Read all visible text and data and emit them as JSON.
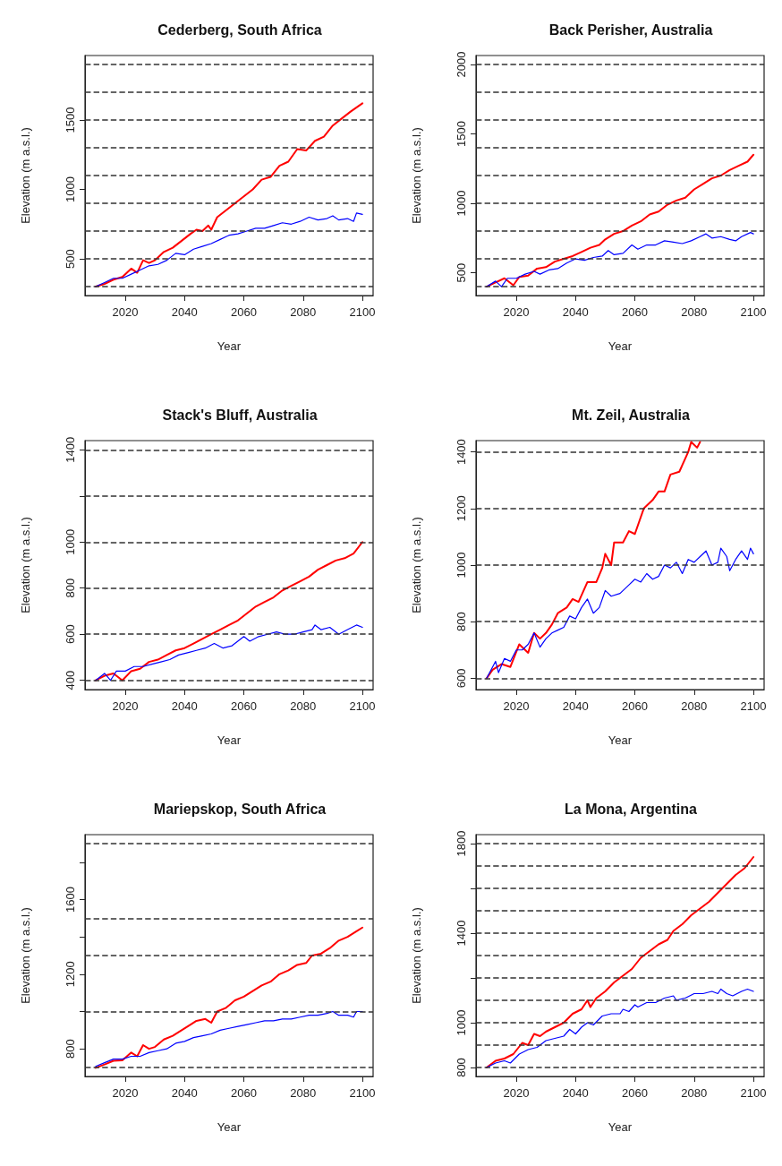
{
  "chart_data": [
    {
      "type": "line",
      "title": "Cederberg, South Africa",
      "xlabel": "Year",
      "ylabel": "Elevation (m a.s.l.)",
      "xlim": [
        2006.4,
        2103.6
      ],
      "xticks": [
        2020,
        2040,
        2060,
        2080,
        2100
      ],
      "ylim": [
        236,
        1964
      ],
      "yticks": [
        500,
        1000,
        1500
      ],
      "grid": false,
      "ref_lines": [
        {
          "axis": "y",
          "value": 300,
          "color": "#333333",
          "line_style": "dashed"
        },
        {
          "axis": "y",
          "value": 500,
          "color": "#333333",
          "line_style": "dashed"
        },
        {
          "axis": "y",
          "value": 700,
          "color": "#333333",
          "line_style": "dashed"
        },
        {
          "axis": "y",
          "value": 900,
          "color": "#333333",
          "line_style": "dashed"
        },
        {
          "axis": "y",
          "value": 1100,
          "color": "#333333",
          "line_style": "dashed"
        },
        {
          "axis": "y",
          "value": 1300,
          "color": "#333333",
          "line_style": "dashed"
        },
        {
          "axis": "y",
          "value": 1500,
          "color": "#333333",
          "line_style": "dashed"
        },
        {
          "axis": "y",
          "value": 1700,
          "color": "#333333",
          "line_style": "dashed"
        },
        {
          "axis": "y",
          "value": 1900,
          "color": "#333333",
          "line_style": "dashed"
        }
      ],
      "series": [
        {
          "color": "#ff0000",
          "x": [
            2010,
            2013,
            2016,
            2019,
            2022,
            2024,
            2026,
            2028,
            2030,
            2033,
            2036,
            2039,
            2042,
            2044,
            2046,
            2048,
            2049,
            2051,
            2054,
            2057,
            2060,
            2063,
            2066,
            2069,
            2072,
            2075,
            2078,
            2081,
            2084,
            2087,
            2090,
            2093,
            2096,
            2100
          ],
          "values": [
            300,
            320,
            350,
            370,
            430,
            400,
            490,
            470,
            490,
            550,
            580,
            630,
            680,
            710,
            700,
            740,
            710,
            800,
            850,
            900,
            950,
            1000,
            1070,
            1090,
            1170,
            1200,
            1290,
            1280,
            1350,
            1380,
            1460,
            1510,
            1560,
            1620
          ]
        },
        {
          "color": "#0000ff",
          "x": [
            2010,
            2013,
            2016,
            2019,
            2022,
            2025,
            2028,
            2031,
            2034,
            2037,
            2040,
            2043,
            2046,
            2049,
            2052,
            2055,
            2058,
            2061,
            2064,
            2067,
            2070,
            2073,
            2076,
            2079,
            2082,
            2085,
            2088,
            2090,
            2092,
            2095,
            2097,
            2098,
            2100
          ],
          "values": [
            300,
            330,
            360,
            360,
            390,
            420,
            450,
            460,
            490,
            540,
            530,
            570,
            590,
            610,
            640,
            670,
            680,
            700,
            720,
            720,
            740,
            760,
            750,
            770,
            800,
            780,
            790,
            810,
            780,
            790,
            770,
            830,
            820
          ]
        }
      ]
    },
    {
      "type": "line",
      "title": "Back Perisher, Australia",
      "xlabel": "Year",
      "ylabel": "Elevation (m a.s.l.)",
      "xlim": [
        2006.4,
        2103.6
      ],
      "xticks": [
        2020,
        2040,
        2060,
        2080,
        2100
      ],
      "ylim": [
        336,
        2064
      ],
      "yticks": [
        500,
        1000,
        1500,
        2000
      ],
      "grid": false,
      "ref_lines": [
        {
          "axis": "y",
          "value": 400,
          "color": "#333333",
          "line_style": "dashed"
        },
        {
          "axis": "y",
          "value": 600,
          "color": "#333333",
          "line_style": "dashed"
        },
        {
          "axis": "y",
          "value": 800,
          "color": "#333333",
          "line_style": "dashed"
        },
        {
          "axis": "y",
          "value": 1000,
          "color": "#333333",
          "line_style": "dashed"
        },
        {
          "axis": "y",
          "value": 1200,
          "color": "#333333",
          "line_style": "dashed"
        },
        {
          "axis": "y",
          "value": 1400,
          "color": "#333333",
          "line_style": "dashed"
        },
        {
          "axis": "y",
          "value": 1600,
          "color": "#333333",
          "line_style": "dashed"
        },
        {
          "axis": "y",
          "value": 1800,
          "color": "#333333",
          "line_style": "dashed"
        },
        {
          "axis": "y",
          "value": 2000,
          "color": "#333333",
          "line_style": "dashed"
        }
      ],
      "series": [
        {
          "color": "#ff0000",
          "x": [
            2010,
            2013,
            2016,
            2019,
            2021,
            2024,
            2027,
            2030,
            2033,
            2036,
            2039,
            2042,
            2045,
            2048,
            2050,
            2053,
            2056,
            2059,
            2062,
            2065,
            2068,
            2071,
            2074,
            2077,
            2080,
            2083,
            2086,
            2089,
            2092,
            2095,
            2098,
            2100
          ],
          "values": [
            400,
            430,
            460,
            410,
            470,
            480,
            530,
            540,
            580,
            600,
            620,
            650,
            680,
            700,
            740,
            780,
            800,
            840,
            870,
            920,
            940,
            990,
            1020,
            1040,
            1100,
            1140,
            1180,
            1200,
            1240,
            1270,
            1300,
            1350
          ]
        },
        {
          "color": "#0000ff",
          "x": [
            2010,
            2013,
            2015,
            2017,
            2020,
            2023,
            2026,
            2028,
            2031,
            2034,
            2037,
            2040,
            2043,
            2046,
            2049,
            2051,
            2053,
            2056,
            2059,
            2061,
            2064,
            2067,
            2070,
            2073,
            2076,
            2079,
            2082,
            2084,
            2086,
            2089,
            2092,
            2094,
            2096,
            2099,
            2100
          ],
          "values": [
            400,
            440,
            400,
            460,
            460,
            490,
            510,
            490,
            520,
            530,
            570,
            600,
            590,
            610,
            620,
            660,
            630,
            640,
            700,
            670,
            700,
            700,
            730,
            720,
            710,
            730,
            760,
            780,
            750,
            760,
            740,
            730,
            760,
            790,
            780
          ]
        }
      ]
    },
    {
      "type": "line",
      "title": "Stack's Bluff, Australia",
      "xlabel": "Year",
      "ylabel": "Elevation (m a.s.l.)",
      "xlim": [
        2006.4,
        2103.6
      ],
      "xticks": [
        2020,
        2040,
        2060,
        2080,
        2100
      ],
      "ylim": [
        360,
        1440
      ],
      "yticks": [
        400,
        600,
        800,
        1000,
        {
          "value": 1200,
          "label": null
        },
        1400
      ],
      "grid": false,
      "ref_lines": [
        {
          "axis": "y",
          "value": 400,
          "color": "#333333",
          "line_style": "dashed"
        },
        {
          "axis": "y",
          "value": 600,
          "color": "#333333",
          "line_style": "dashed"
        },
        {
          "axis": "y",
          "value": 800,
          "color": "#333333",
          "line_style": "dashed"
        },
        {
          "axis": "y",
          "value": 1000,
          "color": "#333333",
          "line_style": "dashed"
        },
        {
          "axis": "y",
          "value": 1200,
          "color": "#333333",
          "line_style": "dashed"
        },
        {
          "axis": "y",
          "value": 1400,
          "color": "#333333",
          "line_style": "dashed"
        }
      ],
      "series": [
        {
          "color": "#ff0000",
          "x": [
            2010,
            2013,
            2016,
            2019,
            2022,
            2025,
            2028,
            2031,
            2034,
            2037,
            2040,
            2043,
            2046,
            2049,
            2052,
            2055,
            2058,
            2061,
            2064,
            2067,
            2070,
            2073,
            2076,
            2079,
            2082,
            2085,
            2088,
            2091,
            2094,
            2097,
            2100
          ],
          "values": [
            400,
            420,
            430,
            400,
            440,
            450,
            480,
            490,
            510,
            530,
            540,
            560,
            580,
            600,
            620,
            640,
            660,
            690,
            720,
            740,
            760,
            790,
            810,
            830,
            850,
            880,
            900,
            920,
            930,
            950,
            1000
          ]
        },
        {
          "color": "#0000ff",
          "x": [
            2010,
            2013,
            2015,
            2017,
            2020,
            2023,
            2026,
            2029,
            2032,
            2035,
            2038,
            2041,
            2044,
            2047,
            2050,
            2053,
            2056,
            2060,
            2062,
            2065,
            2068,
            2071,
            2074,
            2077,
            2080,
            2083,
            2084,
            2086,
            2089,
            2092,
            2095,
            2098,
            2100
          ],
          "values": [
            400,
            430,
            400,
            440,
            440,
            460,
            460,
            470,
            480,
            490,
            510,
            520,
            530,
            540,
            560,
            540,
            550,
            590,
            570,
            590,
            600,
            610,
            600,
            600,
            610,
            620,
            640,
            620,
            630,
            600,
            620,
            640,
            630
          ]
        }
      ]
    },
    {
      "type": "line",
      "title": "Mt. Zeil, Australia",
      "xlabel": "Year",
      "ylabel": "Elevation (m a.s.l.)",
      "xlim": [
        2006.4,
        2103.6
      ],
      "xticks": [
        2020,
        2040,
        2060,
        2080,
        2100
      ],
      "ylim": [
        560,
        1440
      ],
      "yticks": [
        600,
        800,
        1000,
        1200,
        1400
      ],
      "grid": false,
      "ref_lines": [
        {
          "axis": "y",
          "value": 600,
          "color": "#333333",
          "line_style": "dashed"
        },
        {
          "axis": "y",
          "value": 800,
          "color": "#333333",
          "line_style": "dashed"
        },
        {
          "axis": "y",
          "value": 1000,
          "color": "#333333",
          "line_style": "dashed"
        },
        {
          "axis": "y",
          "value": 1200,
          "color": "#333333",
          "line_style": "dashed"
        },
        {
          "axis": "y",
          "value": 1400,
          "color": "#333333",
          "line_style": "dashed"
        }
      ],
      "series": [
        {
          "color": "#ff0000",
          "x": [
            2010,
            2012,
            2015,
            2018,
            2021,
            2024,
            2026,
            2028,
            2030,
            2032,
            2034,
            2037,
            2039,
            2041,
            2044,
            2047,
            2049,
            2050,
            2052,
            2053,
            2056,
            2058,
            2060,
            2063,
            2066,
            2068,
            2070,
            2072,
            2075,
            2078,
            2079,
            2081,
            2082
          ],
          "values": [
            600,
            630,
            650,
            640,
            720,
            690,
            760,
            740,
            760,
            790,
            830,
            850,
            880,
            870,
            940,
            940,
            990,
            1040,
            1000,
            1080,
            1080,
            1120,
            1110,
            1200,
            1230,
            1260,
            1260,
            1320,
            1330,
            1400,
            1435,
            1415,
            1435
          ]
        },
        {
          "color": "#0000ff",
          "x": [
            2010,
            2012,
            2013,
            2014,
            2016,
            2018,
            2020,
            2022,
            2024,
            2026,
            2028,
            2030,
            2032,
            2034,
            2036,
            2038,
            2040,
            2042,
            2044,
            2046,
            2048,
            2050,
            2052,
            2055,
            2058,
            2060,
            2062,
            2064,
            2066,
            2068,
            2070,
            2072,
            2074,
            2076,
            2078,
            2080,
            2082,
            2084,
            2086,
            2088,
            2089,
            2091,
            2092,
            2094,
            2096,
            2098,
            2099,
            2100
          ],
          "values": [
            600,
            640,
            660,
            620,
            670,
            660,
            700,
            700,
            720,
            760,
            710,
            740,
            760,
            770,
            780,
            820,
            810,
            850,
            880,
            830,
            850,
            910,
            890,
            900,
            930,
            950,
            940,
            970,
            950,
            960,
            1000,
            990,
            1010,
            970,
            1020,
            1010,
            1030,
            1050,
            1000,
            1010,
            1060,
            1030,
            980,
            1020,
            1050,
            1020,
            1060,
            1040
          ]
        }
      ]
    },
    {
      "type": "line",
      "title": "Mariepskop, South Africa",
      "xlabel": "Year",
      "ylabel": "Elevation (m a.s.l.)",
      "xlim": [
        2006.4,
        2103.6
      ],
      "xticks": [
        2020,
        2040,
        2060,
        2080,
        2100
      ],
      "ylim": [
        652,
        1948
      ],
      "yticks": [
        800,
        {
          "value": 1000,
          "label": null
        },
        1200,
        {
          "value": 1400,
          "label": null
        },
        1600,
        {
          "value": 1800,
          "label": null
        }
      ],
      "grid": false,
      "ref_lines": [
        {
          "axis": "y",
          "value": 700,
          "color": "#333333",
          "line_style": "dashed"
        },
        {
          "axis": "y",
          "value": 1000,
          "color": "#333333",
          "line_style": "dashed"
        },
        {
          "axis": "y",
          "value": 1300,
          "color": "#333333",
          "line_style": "dashed"
        },
        {
          "axis": "y",
          "value": 1500,
          "color": "#333333",
          "line_style": "dashed"
        },
        {
          "axis": "y",
          "value": 1900,
          "color": "#333333",
          "line_style": "dashed"
        }
      ],
      "series": [
        {
          "color": "#ff0000",
          "x": [
            2010,
            2013,
            2016,
            2019,
            2022,
            2024,
            2026,
            2028,
            2030,
            2033,
            2036,
            2039,
            2042,
            2044,
            2047,
            2049,
            2051,
            2054,
            2057,
            2060,
            2063,
            2066,
            2069,
            2072,
            2075,
            2078,
            2081,
            2083,
            2086,
            2089,
            2092,
            2095,
            2098,
            2100
          ],
          "values": [
            698,
            716,
            736,
            738,
            780,
            760,
            820,
            800,
            810,
            850,
            870,
            900,
            930,
            950,
            960,
            940,
            1000,
            1020,
            1060,
            1080,
            1110,
            1140,
            1160,
            1200,
            1220,
            1250,
            1260,
            1300,
            1310,
            1340,
            1380,
            1400,
            1430,
            1450
          ]
        },
        {
          "color": "#0000ff",
          "x": [
            2010,
            2013,
            2016,
            2019,
            2022,
            2025,
            2028,
            2031,
            2034,
            2037,
            2040,
            2043,
            2046,
            2049,
            2052,
            2055,
            2058,
            2061,
            2064,
            2067,
            2070,
            2073,
            2076,
            2079,
            2082,
            2085,
            2088,
            2090,
            2092,
            2095,
            2097,
            2098,
            2100
          ],
          "values": [
            706,
            726,
            745,
            745,
            760,
            760,
            780,
            790,
            800,
            830,
            840,
            860,
            870,
            880,
            900,
            910,
            920,
            930,
            940,
            950,
            950,
            960,
            960,
            970,
            980,
            980,
            990,
            1000,
            980,
            980,
            970,
            1000,
            1000
          ]
        }
      ]
    },
    {
      "type": "line",
      "title": "La Mona, Argentina",
      "xlabel": "Year",
      "ylabel": "Elevation (m a.s.l.)",
      "xlim": [
        2006.4,
        2103.6
      ],
      "xticks": [
        2020,
        2040,
        2060,
        2080,
        2100
      ],
      "ylim": [
        760,
        1840
      ],
      "yticks": [
        800,
        1000,
        {
          "value": 1200,
          "label": null
        },
        1400,
        {
          "value": 1600,
          "label": null
        },
        1800
      ],
      "grid": false,
      "ref_lines": [
        {
          "axis": "y",
          "value": 800,
          "color": "#333333",
          "line_style": "dashed"
        },
        {
          "axis": "y",
          "value": 900,
          "color": "#333333",
          "line_style": "dashed"
        },
        {
          "axis": "y",
          "value": 1000,
          "color": "#333333",
          "line_style": "dashed"
        },
        {
          "axis": "y",
          "value": 1100,
          "color": "#333333",
          "line_style": "dashed"
        },
        {
          "axis": "y",
          "value": 1200,
          "color": "#333333",
          "line_style": "dashed"
        },
        {
          "axis": "y",
          "value": 1300,
          "color": "#333333",
          "line_style": "dashed"
        },
        {
          "axis": "y",
          "value": 1400,
          "color": "#333333",
          "line_style": "dashed"
        },
        {
          "axis": "y",
          "value": 1500,
          "color": "#333333",
          "line_style": "dashed"
        },
        {
          "axis": "y",
          "value": 1600,
          "color": "#333333",
          "line_style": "dashed"
        },
        {
          "axis": "y",
          "value": 1700,
          "color": "#333333",
          "line_style": "dashed"
        },
        {
          "axis": "y",
          "value": 1800,
          "color": "#333333",
          "line_style": "dashed"
        }
      ],
      "series": [
        {
          "color": "#ff0000",
          "x": [
            2010,
            2013,
            2016,
            2019,
            2022,
            2024,
            2026,
            2028,
            2030,
            2033,
            2036,
            2039,
            2042,
            2044,
            2045,
            2047,
            2050,
            2053,
            2056,
            2059,
            2062,
            2065,
            2068,
            2071,
            2073,
            2076,
            2079,
            2082,
            2085,
            2088,
            2091,
            2094,
            2097,
            2100
          ],
          "values": [
            800,
            830,
            840,
            860,
            910,
            900,
            950,
            940,
            960,
            980,
            1000,
            1040,
            1060,
            1100,
            1070,
            1110,
            1140,
            1180,
            1210,
            1240,
            1290,
            1320,
            1350,
            1370,
            1410,
            1440,
            1480,
            1510,
            1540,
            1580,
            1620,
            1660,
            1690,
            1740
          ]
        },
        {
          "color": "#0000ff",
          "x": [
            2010,
            2013,
            2016,
            2018,
            2021,
            2024,
            2027,
            2030,
            2033,
            2036,
            2038,
            2040,
            2042,
            2044,
            2046,
            2049,
            2052,
            2055,
            2056,
            2058,
            2060,
            2061,
            2064,
            2067,
            2070,
            2073,
            2074,
            2077,
            2080,
            2083,
            2086,
            2088,
            2089,
            2091,
            2093,
            2096,
            2098,
            2100
          ],
          "values": [
            800,
            820,
            830,
            820,
            860,
            880,
            890,
            920,
            930,
            940,
            970,
            950,
            980,
            1000,
            990,
            1030,
            1040,
            1040,
            1060,
            1050,
            1080,
            1070,
            1090,
            1090,
            1110,
            1120,
            1100,
            1110,
            1130,
            1130,
            1140,
            1130,
            1150,
            1130,
            1120,
            1140,
            1150,
            1140
          ]
        }
      ]
    }
  ]
}
